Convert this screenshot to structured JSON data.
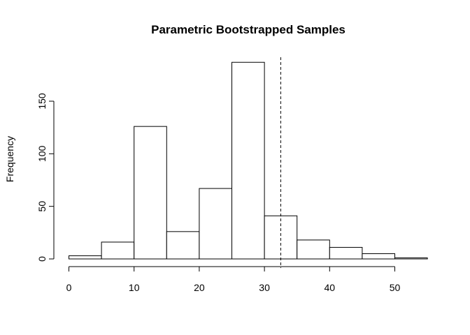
{
  "chart_data": {
    "type": "bar",
    "subtype": "histogram",
    "title": "Parametric Bootstrapped Samples",
    "xlabel": "",
    "ylabel": "Frequency",
    "bins": [
      {
        "start": 0,
        "end": 5,
        "count": 3
      },
      {
        "start": 5,
        "end": 10,
        "count": 16
      },
      {
        "start": 10,
        "end": 15,
        "count": 126
      },
      {
        "start": 15,
        "end": 20,
        "count": 26
      },
      {
        "start": 20,
        "end": 25,
        "count": 67
      },
      {
        "start": 25,
        "end": 30,
        "count": 187
      },
      {
        "start": 30,
        "end": 35,
        "count": 41
      },
      {
        "start": 35,
        "end": 40,
        "count": 18
      },
      {
        "start": 40,
        "end": 45,
        "count": 11
      },
      {
        "start": 45,
        "end": 50,
        "count": 5
      },
      {
        "start": 50,
        "end": 55,
        "count": 1
      }
    ],
    "xlim": [
      0,
      55
    ],
    "ylim": [
      0,
      192
    ],
    "x_ticks": [
      0,
      10,
      20,
      30,
      40,
      50
    ],
    "y_ticks": [
      0,
      50,
      100,
      150
    ],
    "reference_line": {
      "x": 32.5,
      "style": "dashed"
    },
    "grid": false,
    "legend": "none",
    "colors": {
      "bar_fill": "#ffffff",
      "bar_stroke": "#000000"
    }
  }
}
